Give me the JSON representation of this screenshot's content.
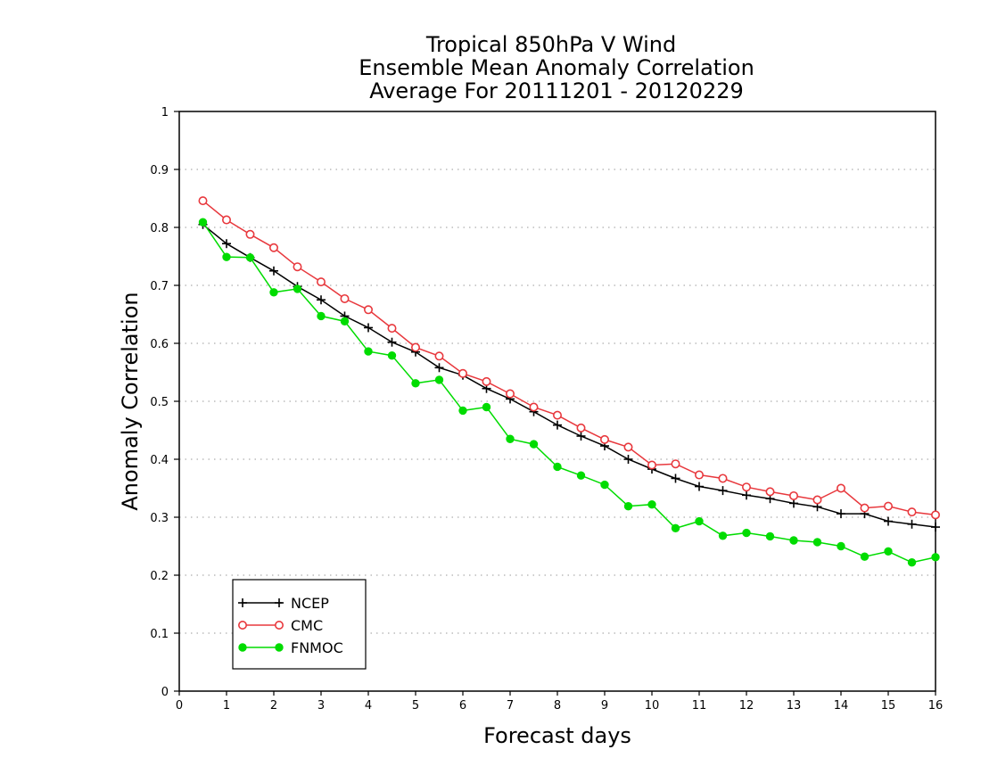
{
  "chart_data": {
    "type": "line",
    "title_lines": [
      "Tropical 850hPa V Wind",
      "Ensemble Mean Anomaly Correlation",
      "Average For 20111201 - 20120229"
    ],
    "xlabel": "Forecast days",
    "ylabel": "Anomaly Correlation",
    "xlim": [
      0,
      16
    ],
    "ylim": [
      0,
      1
    ],
    "x_ticks": [
      0,
      1,
      2,
      3,
      4,
      5,
      6,
      7,
      8,
      9,
      10,
      11,
      12,
      13,
      14,
      15,
      16
    ],
    "y_ticks": [
      0,
      0.1,
      0.2,
      0.3,
      0.4,
      0.5,
      0.6,
      0.7,
      0.8,
      0.9,
      1
    ],
    "y_tick_labels": [
      "0",
      "0.1",
      "0.2",
      "0.3",
      "0.4",
      "0.5",
      "0.6",
      "0.7",
      "0.8",
      "0.9",
      "1"
    ],
    "grid": true,
    "legend_position": "bottom-left",
    "x": [
      0.5,
      1,
      1.5,
      2,
      2.5,
      3,
      3.5,
      4,
      4.5,
      5,
      5.5,
      6,
      6.5,
      7,
      7.5,
      8,
      8.5,
      9,
      9.5,
      10,
      10.5,
      11,
      11.5,
      12,
      12.5,
      13,
      13.5,
      14,
      14.5,
      15,
      15.5,
      16
    ],
    "series": [
      {
        "name": "NCEP",
        "color": "#000000",
        "marker": "plus",
        "values": [
          0.805,
          0.772,
          0.748,
          0.725,
          0.698,
          0.675,
          0.647,
          0.627,
          0.602,
          0.585,
          0.558,
          0.545,
          0.522,
          0.504,
          0.482,
          0.459,
          0.44,
          0.423,
          0.4,
          0.383,
          0.367,
          0.353,
          0.346,
          0.338,
          0.332,
          0.324,
          0.318,
          0.306,
          0.306,
          0.293,
          0.288,
          0.283
        ]
      },
      {
        "name": "CMC",
        "color": "#e8383d",
        "marker": "open-circle",
        "values": [
          0.846,
          0.813,
          0.788,
          0.765,
          0.732,
          0.706,
          0.677,
          0.658,
          0.626,
          0.593,
          0.578,
          0.548,
          0.534,
          0.513,
          0.49,
          0.476,
          0.454,
          0.434,
          0.421,
          0.39,
          0.392,
          0.373,
          0.367,
          0.352,
          0.344,
          0.337,
          0.33,
          0.35,
          0.316,
          0.319,
          0.309,
          0.304
        ]
      },
      {
        "name": "FNMOC",
        "color": "#00dc00",
        "marker": "filled-circle",
        "values": [
          0.809,
          0.749,
          0.748,
          0.688,
          0.694,
          0.647,
          0.638,
          0.586,
          0.579,
          0.531,
          0.537,
          0.484,
          0.49,
          0.435,
          0.426,
          0.387,
          0.372,
          0.356,
          0.319,
          0.322,
          0.281,
          0.293,
          0.268,
          0.273,
          0.267,
          0.26,
          0.257,
          0.25,
          0.232,
          0.241,
          0.222,
          0.231
        ]
      }
    ]
  }
}
